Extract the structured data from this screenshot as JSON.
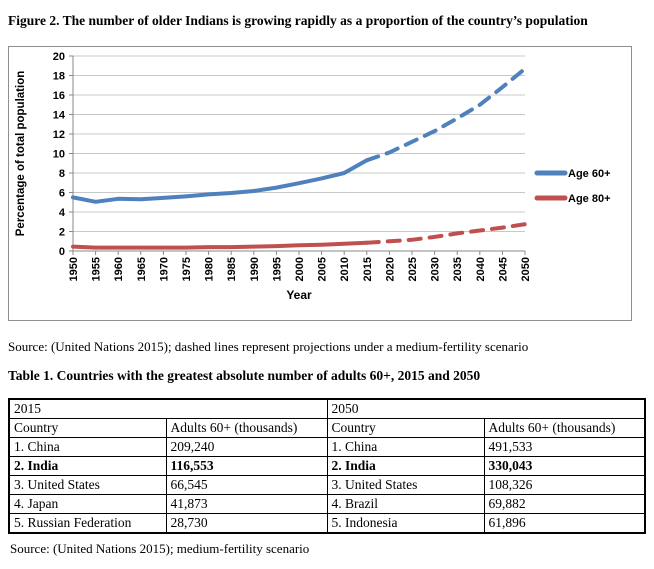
{
  "figure": {
    "title": "Figure 2. The number of older Indians is growing rapidly as a proportion of the country’s population",
    "source": "Source: (United Nations 2015); dashed lines represent projections under a medium-fertility scenario"
  },
  "chart_data": {
    "type": "line",
    "x": [
      1950,
      1955,
      1960,
      1965,
      1970,
      1975,
      1980,
      1985,
      1990,
      1995,
      2000,
      2005,
      2010,
      2015,
      2020,
      2025,
      2030,
      2035,
      2040,
      2045,
      2050
    ],
    "xlabel": "Year",
    "ylabel": "Percentage of total population",
    "ylim": [
      0,
      20
    ],
    "ytick_step": 2,
    "grid": true,
    "legend_position": "right",
    "series": [
      {
        "name": "Age 60+",
        "color": "#4F81BD",
        "solid_until_index": 13,
        "values": [
          5.5,
          5.05,
          5.35,
          5.3,
          5.45,
          5.6,
          5.8,
          5.95,
          6.15,
          6.5,
          6.95,
          7.45,
          8.0,
          9.3,
          10.1,
          11.2,
          12.3,
          13.6,
          15.0,
          16.8,
          18.7
        ]
      },
      {
        "name": "Age 80+",
        "color": "#C0504D",
        "solid_until_index": 13,
        "values": [
          0.45,
          0.35,
          0.35,
          0.35,
          0.35,
          0.35,
          0.4,
          0.4,
          0.45,
          0.5,
          0.6,
          0.65,
          0.75,
          0.85,
          1.0,
          1.15,
          1.45,
          1.8,
          2.1,
          2.4,
          2.75
        ]
      }
    ]
  },
  "table": {
    "title": "Table 1. Countries with the greatest absolute number of adults 60+, 2015 and 2050",
    "source": "Source: (United Nations 2015); medium-fertility scenario",
    "halves": [
      {
        "year_header": "2015",
        "columns": [
          "Country",
          "Adults 60+ (thousands)"
        ],
        "rows": [
          [
            "1. China",
            "209,240"
          ],
          [
            "2. India",
            "116,553"
          ],
          [
            "3. United States",
            "66,545"
          ],
          [
            "4. Japan",
            "41,873"
          ],
          [
            "5. Russian Federation",
            "28,730"
          ]
        ]
      },
      {
        "year_header": "2050",
        "columns": [
          "Country",
          "Adults 60+ (thousands)"
        ],
        "rows": [
          [
            "1. China",
            "491,533"
          ],
          [
            "2. India",
            "330,043"
          ],
          [
            "3. United States",
            "108,326"
          ],
          [
            "4. Brazil",
            "69,882"
          ],
          [
            "5. Indonesia",
            "61,896"
          ]
        ]
      }
    ]
  }
}
